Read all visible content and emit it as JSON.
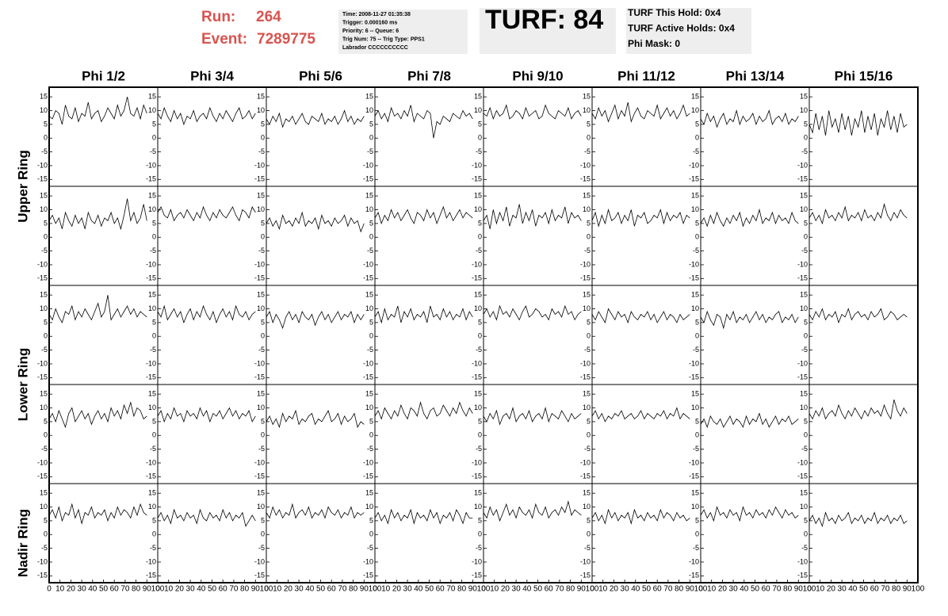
{
  "header": {
    "run_label": "Run:",
    "run": "264",
    "event_label": "Event:",
    "event": "7289775",
    "info_lines": [
      "Time: 2008-11-27 01:35:38",
      "Trigger: 0.000160 ms",
      "Priority: 6 -- Queue: 6",
      "Trig Num: 75 -- Trig Type: PPS1",
      "Labrador CCCCCCCCCC"
    ],
    "turf": "TURF: 84",
    "turf_lines": [
      "TURF This Hold: 0x4",
      "TURF Active Holds: 0x4",
      "Phi Mask: 0"
    ]
  },
  "chart_data": {
    "type": "line",
    "color": "#000000",
    "columns": [
      "Phi 1/2",
      "Phi 3/4",
      "Phi 5/6",
      "Phi 7/8",
      "Phi 9/10",
      "Phi 11/12",
      "Phi 13/14",
      "Phi 15/16"
    ],
    "rows": [
      "Upper Ring",
      "Lower Ring",
      "Nadir Ring"
    ],
    "xlim": [
      0,
      100
    ],
    "xticks": [
      0,
      10,
      20,
      30,
      40,
      50,
      60,
      70,
      80,
      90,
      100
    ],
    "ylim": [
      -17.5,
      18.5
    ],
    "yticks": [
      15,
      10,
      5,
      0,
      -5,
      -10,
      -15
    ],
    "x": [
      0,
      3,
      6,
      9,
      12,
      15,
      18,
      21,
      24,
      27,
      30,
      33,
      36,
      39,
      42,
      45,
      48,
      51,
      54,
      57,
      60,
      63,
      66,
      69,
      72,
      75,
      78,
      81,
      84,
      87,
      90
    ],
    "panels": [
      {
        "values": [
          8,
          7,
          10,
          9,
          5,
          12,
          8,
          7,
          11,
          6,
          9,
          8,
          13,
          7,
          9,
          10,
          6,
          8,
          11,
          9,
          7,
          12,
          8,
          10,
          15,
          9,
          8,
          11,
          7,
          12,
          9
        ]
      },
      {
        "values": [
          9,
          7,
          11,
          8,
          6,
          10,
          7,
          9,
          5,
          8,
          7,
          10,
          6,
          8,
          9,
          7,
          11,
          8,
          6,
          9,
          7,
          10,
          8,
          6,
          9,
          11,
          7,
          8,
          10,
          7,
          9
        ]
      },
      {
        "values": [
          7,
          5,
          8,
          6,
          9,
          4,
          7,
          6,
          8,
          5,
          7,
          9,
          6,
          5,
          8,
          7,
          6,
          9,
          5,
          7,
          6,
          8,
          5,
          7,
          10,
          6,
          8,
          5,
          7,
          6,
          8
        ]
      },
      {
        "values": [
          8,
          10,
          7,
          9,
          6,
          11,
          8,
          9,
          7,
          10,
          8,
          12,
          6,
          9,
          8,
          7,
          10,
          9,
          0,
          6,
          5,
          8,
          7,
          6,
          9,
          8,
          7,
          10,
          8,
          9,
          7
        ]
      },
      {
        "values": [
          9,
          8,
          11,
          7,
          10,
          8,
          9,
          12,
          7,
          8,
          10,
          9,
          7,
          11,
          8,
          9,
          10,
          7,
          8,
          12,
          9,
          8,
          7,
          10,
          9,
          8,
          11,
          7,
          9,
          10,
          8
        ]
      },
      {
        "values": [
          9,
          7,
          11,
          8,
          10,
          6,
          9,
          12,
          7,
          10,
          8,
          13,
          6,
          9,
          11,
          8,
          7,
          10,
          9,
          8,
          12,
          7,
          9,
          11,
          8,
          10,
          7,
          9,
          12,
          8,
          9
        ]
      },
      {
        "values": [
          7,
          5,
          9,
          6,
          8,
          4,
          7,
          9,
          5,
          7,
          6,
          10,
          5,
          8,
          6,
          7,
          9,
          5,
          8,
          6,
          7,
          10,
          5,
          7,
          8,
          6,
          9,
          5,
          7,
          6,
          8
        ]
      },
      {
        "values": [
          5,
          2,
          9,
          3,
          8,
          1,
          10,
          4,
          7,
          2,
          9,
          3,
          8,
          1,
          7,
          4,
          10,
          2,
          8,
          3,
          9,
          1,
          7,
          4,
          10,
          3,
          8,
          2,
          9,
          4,
          5
        ]
      },
      {
        "values": [
          6,
          8,
          5,
          7,
          3,
          9,
          6,
          4,
          8,
          5,
          7,
          3,
          9,
          6,
          5,
          8,
          4,
          7,
          6,
          9,
          5,
          7,
          3,
          8,
          14,
          6,
          9,
          5,
          7,
          12,
          6
        ]
      },
      {
        "values": [
          9,
          11,
          8,
          7,
          10,
          6,
          8,
          9,
          7,
          10,
          8,
          6,
          9,
          7,
          11,
          8,
          6,
          9,
          7,
          10,
          8,
          7,
          9,
          11,
          8,
          6,
          10,
          9,
          7,
          11,
          9
        ]
      },
      {
        "values": [
          5,
          7,
          4,
          6,
          3,
          8,
          5,
          6,
          4,
          7,
          5,
          9,
          4,
          6,
          5,
          7,
          3,
          8,
          5,
          6,
          4,
          7,
          5,
          6,
          8,
          4,
          7,
          5,
          6,
          2,
          5
        ]
      },
      {
        "values": [
          7,
          9,
          5,
          8,
          6,
          10,
          7,
          9,
          6,
          8,
          10,
          7,
          5,
          9,
          8,
          6,
          10,
          7,
          9,
          5,
          8,
          11,
          7,
          9,
          6,
          8,
          10,
          7,
          9,
          8,
          7
        ]
      },
      {
        "values": [
          6,
          8,
          3,
          10,
          5,
          9,
          6,
          11,
          4,
          8,
          7,
          12,
          5,
          9,
          6,
          10,
          4,
          8,
          7,
          9,
          5,
          10,
          6,
          8,
          7,
          11,
          5,
          9,
          7,
          8,
          6
        ]
      },
      {
        "values": [
          6,
          9,
          4,
          8,
          5,
          10,
          6,
          7,
          9,
          5,
          8,
          6,
          10,
          4,
          8,
          7,
          9,
          5,
          6,
          8,
          7,
          10,
          5,
          9,
          6,
          8,
          7,
          9,
          5,
          8,
          7
        ]
      },
      {
        "values": [
          5,
          7,
          4,
          8,
          5,
          9,
          6,
          4,
          7,
          5,
          8,
          6,
          9,
          4,
          7,
          5,
          8,
          6,
          10,
          5,
          7,
          6,
          9,
          5,
          8,
          6,
          7,
          5,
          9,
          6,
          5
        ]
      },
      {
        "values": [
          7,
          9,
          6,
          8,
          5,
          10,
          7,
          8,
          6,
          9,
          7,
          11,
          6,
          8,
          7,
          9,
          6,
          10,
          7,
          8,
          6,
          9,
          7,
          12,
          8,
          6,
          9,
          7,
          10,
          8,
          7
        ]
      },
      {
        "values": [
          8,
          6,
          10,
          7,
          5,
          9,
          8,
          11,
          6,
          9,
          7,
          10,
          8,
          6,
          9,
          12,
          7,
          9,
          15,
          6,
          8,
          10,
          7,
          9,
          11,
          8,
          10,
          7,
          9,
          8,
          7
        ]
      },
      {
        "values": [
          9,
          7,
          11,
          6,
          8,
          10,
          7,
          9,
          5,
          8,
          10,
          6,
          9,
          7,
          11,
          8,
          6,
          9,
          5,
          8,
          10,
          7,
          9,
          6,
          11,
          8,
          7,
          9,
          6,
          8,
          9
        ]
      },
      {
        "values": [
          7,
          9,
          5,
          8,
          6,
          3,
          7,
          9,
          6,
          8,
          5,
          9,
          7,
          6,
          8,
          4,
          7,
          9,
          6,
          8,
          5,
          7,
          9,
          6,
          8,
          7,
          9,
          5,
          8,
          6,
          8
        ]
      },
      {
        "values": [
          7,
          9,
          5,
          10,
          6,
          8,
          7,
          11,
          5,
          9,
          7,
          10,
          6,
          8,
          7,
          9,
          5,
          11,
          7,
          8,
          6,
          10,
          7,
          9,
          6,
          8,
          7,
          10,
          6,
          9,
          7
        ]
      },
      {
        "values": [
          8,
          10,
          7,
          9,
          6,
          11,
          8,
          9,
          7,
          10,
          8,
          6,
          9,
          11,
          7,
          8,
          10,
          9,
          7,
          8,
          6,
          10,
          8,
          9,
          7,
          11,
          8,
          9,
          6,
          8,
          9
        ]
      },
      {
        "values": [
          8,
          6,
          9,
          7,
          5,
          10,
          8,
          6,
          9,
          7,
          8,
          5,
          9,
          7,
          6,
          8,
          7,
          9,
          6,
          8,
          5,
          7,
          9,
          6,
          8,
          7,
          5,
          8,
          6,
          7,
          8
        ]
      },
      {
        "values": [
          7,
          5,
          9,
          6,
          4,
          8,
          7,
          3,
          8,
          6,
          9,
          5,
          7,
          6,
          8,
          5,
          7,
          9,
          6,
          8,
          5,
          7,
          6,
          8,
          9,
          5,
          7,
          6,
          8,
          5,
          7
        ]
      },
      {
        "values": [
          8,
          6,
          9,
          7,
          10,
          6,
          8,
          7,
          9,
          5,
          8,
          7,
          10,
          6,
          8,
          9,
          7,
          8,
          6,
          9,
          7,
          8,
          10,
          6,
          7,
          9,
          8,
          6,
          7,
          8,
          7
        ]
      },
      {
        "values": [
          6,
          8,
          5,
          9,
          6,
          3,
          8,
          10,
          5,
          7,
          9,
          6,
          8,
          4,
          7,
          9,
          6,
          8,
          5,
          10,
          7,
          9,
          6,
          11,
          8,
          12,
          7,
          10,
          9,
          6,
          7
        ]
      },
      {
        "values": [
          7,
          9,
          5,
          8,
          6,
          10,
          7,
          8,
          5,
          9,
          7,
          8,
          6,
          10,
          7,
          9,
          5,
          8,
          7,
          9,
          6,
          8,
          10,
          7,
          9,
          6,
          8,
          7,
          9,
          5,
          7
        ]
      },
      {
        "values": [
          5,
          7,
          4,
          6,
          3,
          8,
          5,
          7,
          6,
          9,
          4,
          6,
          5,
          7,
          8,
          4,
          6,
          5,
          7,
          9,
          5,
          6,
          8,
          4,
          7,
          5,
          6,
          8,
          3,
          5,
          4
        ]
      },
      {
        "values": [
          7,
          9,
          6,
          10,
          8,
          6,
          9,
          7,
          11,
          8,
          6,
          10,
          9,
          7,
          12,
          8,
          6,
          9,
          10,
          7,
          8,
          11,
          9,
          7,
          10,
          8,
          12,
          9,
          7,
          10,
          8
        ]
      },
      {
        "values": [
          7,
          5,
          8,
          6,
          9,
          4,
          7,
          8,
          6,
          10,
          5,
          7,
          8,
          6,
          9,
          5,
          7,
          8,
          6,
          10,
          5,
          8,
          7,
          6,
          9,
          7,
          5,
          8,
          6,
          7,
          8
        ]
      },
      {
        "values": [
          7,
          9,
          6,
          8,
          5,
          7,
          6,
          8,
          7,
          9,
          6,
          7,
          8,
          6,
          7,
          9,
          6,
          8,
          7,
          6,
          8,
          7,
          9,
          6,
          8,
          7,
          10,
          6,
          8,
          7,
          6
        ]
      },
      {
        "values": [
          4,
          6,
          3,
          7,
          5,
          4,
          6,
          3,
          5,
          7,
          4,
          6,
          5,
          3,
          7,
          4,
          6,
          5,
          8,
          4,
          6,
          3,
          5,
          7,
          4,
          6,
          5,
          7,
          4,
          5,
          6
        ]
      },
      {
        "values": [
          8,
          6,
          9,
          7,
          10,
          6,
          8,
          9,
          7,
          11,
          8,
          6,
          9,
          7,
          10,
          8,
          6,
          9,
          7,
          10,
          8,
          9,
          7,
          11,
          8,
          6,
          13,
          9,
          7,
          10,
          8
        ]
      },
      {
        "values": [
          7,
          9,
          6,
          10,
          5,
          8,
          7,
          11,
          6,
          9,
          4,
          8,
          7,
          10,
          6,
          8,
          7,
          9,
          5,
          8,
          6,
          10,
          7,
          9,
          8,
          6,
          10,
          7,
          11,
          8,
          7
        ]
      },
      {
        "values": [
          6,
          8,
          5,
          7,
          4,
          9,
          6,
          7,
          5,
          8,
          6,
          7,
          4,
          9,
          6,
          5,
          8,
          6,
          7,
          5,
          9,
          6,
          8,
          5,
          7,
          6,
          8,
          3,
          5,
          7,
          5
        ]
      },
      {
        "values": [
          8,
          6,
          10,
          7,
          9,
          6,
          8,
          7,
          11,
          6,
          8,
          9,
          7,
          10,
          6,
          8,
          7,
          9,
          6,
          10,
          8,
          7,
          9,
          6,
          8,
          7,
          10,
          6,
          8,
          7,
          8
        ]
      },
      {
        "values": [
          6,
          8,
          5,
          7,
          4,
          9,
          6,
          8,
          5,
          7,
          6,
          9,
          4,
          8,
          6,
          7,
          5,
          9,
          6,
          8,
          4,
          7,
          6,
          8,
          5,
          9,
          7,
          4,
          8,
          6,
          6
        ]
      },
      {
        "values": [
          8,
          6,
          10,
          7,
          9,
          5,
          8,
          11,
          7,
          9,
          6,
          10,
          8,
          7,
          9,
          6,
          11,
          8,
          7,
          10,
          6,
          8,
          9,
          7,
          10,
          8,
          12,
          7,
          9,
          8,
          7
        ]
      },
      {
        "values": [
          6,
          8,
          5,
          7,
          4,
          9,
          6,
          8,
          5,
          7,
          6,
          8,
          4,
          9,
          6,
          7,
          5,
          8,
          6,
          7,
          5,
          9,
          6,
          8,
          7,
          5,
          8,
          6,
          7,
          5,
          6
        ]
      },
      {
        "values": [
          7,
          9,
          6,
          8,
          5,
          10,
          7,
          8,
          6,
          9,
          7,
          8,
          5,
          10,
          7,
          8,
          6,
          9,
          7,
          8,
          6,
          9,
          7,
          10,
          8,
          6,
          9,
          7,
          8,
          6,
          7
        ]
      },
      {
        "values": [
          5,
          7,
          4,
          6,
          3,
          8,
          5,
          6,
          4,
          7,
          5,
          6,
          8,
          4,
          6,
          5,
          7,
          4,
          6,
          5,
          8,
          4,
          6,
          5,
          7,
          4,
          6,
          5,
          7,
          4,
          5
        ]
      }
    ]
  }
}
